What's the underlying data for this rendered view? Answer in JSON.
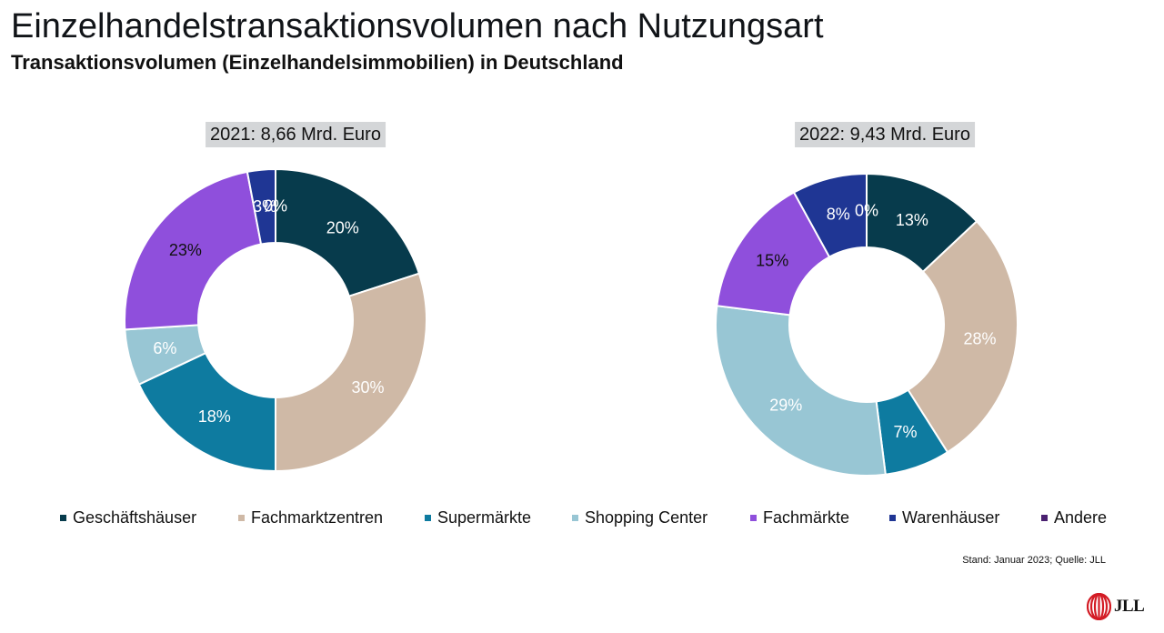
{
  "header": {
    "title": "Einzelhandelstransaktionsvolumen nach Nutzungsart",
    "subtitle": "Transaktionsvolumen (Einzelhandelsimmobilien) in Deutschland"
  },
  "chart_data": [
    {
      "type": "pie",
      "title": "2021: 8,66 Mrd. Euro",
      "categories": [
        "Geschäftshäuser",
        "Fachmarktzentren",
        "Supermärkte",
        "Shopping Center",
        "Fachmärkte",
        "Warenhäuser",
        "Andere"
      ],
      "values": [
        20,
        30,
        18,
        6,
        23,
        3,
        0
      ],
      "labels": [
        "20%",
        "30%",
        "18%",
        "6%",
        "23%",
        "3%",
        "0%"
      ],
      "colors": [
        "#073b4c",
        "#cfb9a6",
        "#0e7ba0",
        "#98c6d4",
        "#8f4fdc",
        "#1f3694",
        "#4a2070"
      ]
    },
    {
      "type": "pie",
      "title": "2022: 9,43 Mrd. Euro",
      "categories": [
        "Geschäftshäuser",
        "Fachmarktzentren",
        "Supermärkte",
        "Shopping Center",
        "Fachmärkte",
        "Warenhäuser",
        "Andere"
      ],
      "values": [
        13,
        28,
        7,
        29,
        15,
        8,
        0
      ],
      "labels": [
        "13%",
        "28%",
        "7%",
        "29%",
        "15%",
        "8%",
        "0%"
      ],
      "colors": [
        "#073b4c",
        "#cfb9a6",
        "#0e7ba0",
        "#98c6d4",
        "#8f4fdc",
        "#1f3694",
        "#4a2070"
      ]
    }
  ],
  "legend": {
    "placement": "bottom",
    "items": [
      {
        "label": "Geschäftshäuser",
        "color": "#073b4c"
      },
      {
        "label": "Fachmarktzentren",
        "color": "#cfb9a6"
      },
      {
        "label": "Supermärkte",
        "color": "#0e7ba0"
      },
      {
        "label": "Shopping Center",
        "color": "#98c6d4"
      },
      {
        "label": "Fachmärkte",
        "color": "#8f4fdc"
      },
      {
        "label": "Warenhäuser",
        "color": "#1f3694"
      },
      {
        "label": "Andere",
        "color": "#4a2070"
      }
    ]
  },
  "footer": {
    "source": "Stand: Januar 2023; Quelle: JLL",
    "logo_text": "JLL",
    "logo_icon": "jll-logo-icon"
  }
}
